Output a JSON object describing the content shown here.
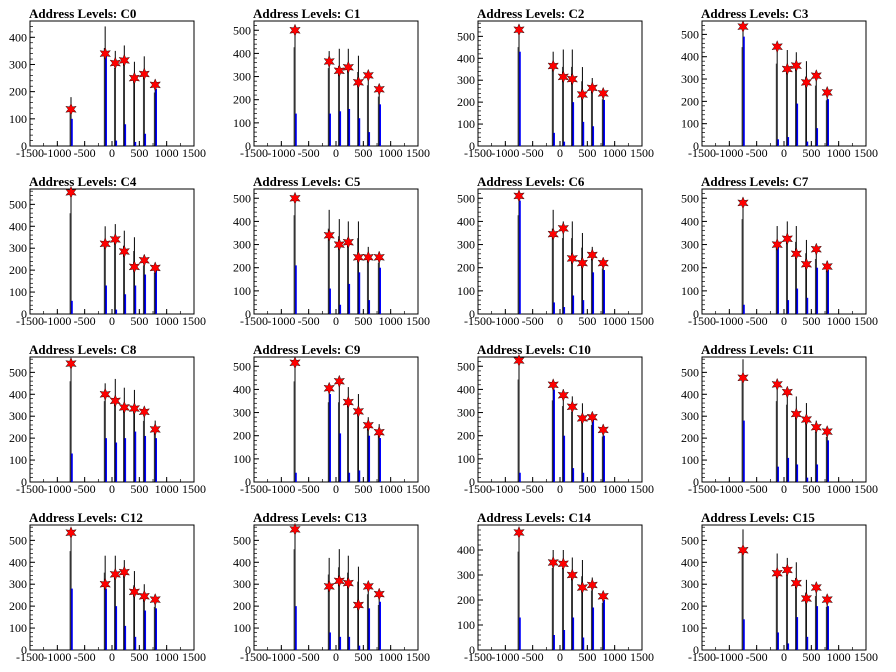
{
  "chart_data": [
    {
      "type": "bar",
      "title": "Address Levels: C0",
      "xlim": [
        -1500,
        1500
      ],
      "ylim": [
        0,
        460
      ],
      "xticks": [
        -1500,
        -1000,
        -500,
        0,
        500,
        1000,
        1500
      ],
      "yticks": [
        0,
        100,
        200,
        300,
        400
      ],
      "peaks": [
        {
          "x": -750,
          "black": 180,
          "blue": 100,
          "star": 135
        },
        {
          "x": -125,
          "black": 440,
          "blue": 330,
          "star": 340
        },
        {
          "x": 60,
          "black": 350,
          "blue": 20,
          "star": 305
        },
        {
          "x": 225,
          "black": 370,
          "blue": 80,
          "star": 315
        },
        {
          "x": 410,
          "black": 310,
          "blue": 15,
          "star": 250
        },
        {
          "x": 590,
          "black": 330,
          "blue": 45,
          "star": 265
        },
        {
          "x": 790,
          "black": 240,
          "blue": 210,
          "star": 225
        }
      ]
    },
    {
      "type": "bar",
      "title": "Address Levels: C1",
      "xlim": [
        -1500,
        1500
      ],
      "ylim": [
        0,
        540
      ],
      "xticks": [
        -1500,
        -1000,
        -500,
        0,
        500,
        1000,
        1500
      ],
      "yticks": [
        0,
        100,
        200,
        300,
        400,
        500
      ],
      "peaks": [
        {
          "x": -750,
          "black": 520,
          "blue": 140,
          "star": 500
        },
        {
          "x": -125,
          "black": 410,
          "blue": 140,
          "star": 365
        },
        {
          "x": 60,
          "black": 420,
          "blue": 150,
          "star": 325
        },
        {
          "x": 225,
          "black": 420,
          "blue": 160,
          "star": 340
        },
        {
          "x": 410,
          "black": 390,
          "blue": 120,
          "star": 275
        },
        {
          "x": 590,
          "black": 320,
          "blue": 60,
          "star": 305
        },
        {
          "x": 790,
          "black": 260,
          "blue": 180,
          "star": 245
        }
      ]
    },
    {
      "type": "bar",
      "title": "Address Levels: C2",
      "xlim": [
        -1500,
        1500
      ],
      "ylim": [
        0,
        570
      ],
      "xticks": [
        -1500,
        -1000,
        -500,
        0,
        500,
        1000,
        1500
      ],
      "yticks": [
        0,
        100,
        200,
        300,
        400,
        500
      ],
      "peaks": [
        {
          "x": -750,
          "black": 550,
          "blue": 430,
          "star": 530
        },
        {
          "x": -125,
          "black": 430,
          "blue": 60,
          "star": 365
        },
        {
          "x": 60,
          "black": 440,
          "blue": 20,
          "star": 315
        },
        {
          "x": 225,
          "black": 440,
          "blue": 200,
          "star": 305
        },
        {
          "x": 410,
          "black": 360,
          "blue": 110,
          "star": 235
        },
        {
          "x": 590,
          "black": 310,
          "blue": 90,
          "star": 265
        },
        {
          "x": 790,
          "black": 260,
          "blue": 210,
          "star": 240
        }
      ]
    },
    {
      "type": "bar",
      "title": "Address Levels: C3",
      "xlim": [
        -1500,
        1500
      ],
      "ylim": [
        0,
        560
      ],
      "xticks": [
        -1500,
        -1000,
        -500,
        0,
        500,
        1000,
        1500
      ],
      "yticks": [
        0,
        100,
        200,
        300,
        400,
        500
      ],
      "peaks": [
        {
          "x": -750,
          "black": 540,
          "blue": 490,
          "star": 535
        },
        {
          "x": -125,
          "black": 450,
          "blue": 30,
          "star": 445
        },
        {
          "x": 60,
          "black": 430,
          "blue": 40,
          "star": 345
        },
        {
          "x": 225,
          "black": 420,
          "blue": 190,
          "star": 360
        },
        {
          "x": 410,
          "black": 380,
          "blue": 20,
          "star": 285
        },
        {
          "x": 590,
          "black": 330,
          "blue": 80,
          "star": 315
        },
        {
          "x": 790,
          "black": 250,
          "blue": 210,
          "star": 240
        }
      ]
    },
    {
      "type": "bar",
      "title": "Address Levels: C4",
      "xlim": [
        -1500,
        1500
      ],
      "ylim": [
        0,
        570
      ],
      "xticks": [
        -1500,
        -1000,
        -500,
        0,
        500,
        1000,
        1500
      ],
      "yticks": [
        0,
        100,
        200,
        300,
        400,
        500
      ],
      "peaks": [
        {
          "x": -750,
          "black": 560,
          "blue": 60,
          "star": 555
        },
        {
          "x": -125,
          "black": 400,
          "blue": 130,
          "star": 320
        },
        {
          "x": 60,
          "black": 410,
          "blue": 20,
          "star": 340
        },
        {
          "x": 225,
          "black": 380,
          "blue": 90,
          "star": 285
        },
        {
          "x": 410,
          "black": 350,
          "blue": 130,
          "star": 215
        },
        {
          "x": 590,
          "black": 270,
          "blue": 180,
          "star": 245
        },
        {
          "x": 790,
          "black": 230,
          "blue": 200,
          "star": 210
        }
      ]
    },
    {
      "type": "bar",
      "title": "Address Levels: C5",
      "xlim": [
        -1500,
        1500
      ],
      "ylim": [
        0,
        540
      ],
      "xticks": [
        -1500,
        -1000,
        -500,
        0,
        500,
        1000,
        1500
      ],
      "yticks": [
        0,
        100,
        200,
        300,
        400,
        500
      ],
      "peaks": [
        {
          "x": -750,
          "black": 520,
          "blue": 210,
          "star": 500
        },
        {
          "x": -125,
          "black": 450,
          "blue": 110,
          "star": 340
        },
        {
          "x": 60,
          "black": 410,
          "blue": 40,
          "star": 300
        },
        {
          "x": 225,
          "black": 400,
          "blue": 130,
          "star": 310
        },
        {
          "x": 410,
          "black": 400,
          "blue": 180,
          "star": 245
        },
        {
          "x": 590,
          "black": 290,
          "blue": 60,
          "star": 245
        },
        {
          "x": 790,
          "black": 270,
          "blue": 200,
          "star": 245
        }
      ]
    },
    {
      "type": "bar",
      "title": "Address Levels: C6",
      "xlim": [
        -1500,
        1500
      ],
      "ylim": [
        0,
        540
      ],
      "xticks": [
        -1500,
        -1000,
        -500,
        0,
        500,
        1000,
        1500
      ],
      "yticks": [
        0,
        100,
        200,
        300,
        400,
        500
      ],
      "peaks": [
        {
          "x": -750,
          "black": 520,
          "blue": 490,
          "star": 510
        },
        {
          "x": -125,
          "black": 450,
          "blue": 50,
          "star": 345
        },
        {
          "x": 60,
          "black": 400,
          "blue": 30,
          "star": 370
        },
        {
          "x": 225,
          "black": 400,
          "blue": 80,
          "star": 240
        },
        {
          "x": 410,
          "black": 350,
          "blue": 60,
          "star": 220
        },
        {
          "x": 590,
          "black": 290,
          "blue": 180,
          "star": 255
        },
        {
          "x": 790,
          "black": 240,
          "blue": 190,
          "star": 220
        }
      ]
    },
    {
      "type": "bar",
      "title": "Address Levels: C7",
      "xlim": [
        -1500,
        1500
      ],
      "ylim": [
        0,
        540
      ],
      "xticks": [
        -1500,
        -1000,
        -500,
        0,
        500,
        1000,
        1500
      ],
      "yticks": [
        0,
        100,
        200,
        300,
        400,
        500
      ],
      "peaks": [
        {
          "x": -750,
          "black": 500,
          "blue": 40,
          "star": 480
        },
        {
          "x": -125,
          "black": 380,
          "blue": 300,
          "star": 300
        },
        {
          "x": 60,
          "black": 400,
          "blue": 60,
          "star": 325
        },
        {
          "x": 225,
          "black": 380,
          "blue": 110,
          "star": 260
        },
        {
          "x": 410,
          "black": 320,
          "blue": 70,
          "star": 215
        },
        {
          "x": 590,
          "black": 290,
          "blue": 200,
          "star": 280
        },
        {
          "x": 790,
          "black": 230,
          "blue": 190,
          "star": 205
        }
      ]
    },
    {
      "type": "bar",
      "title": "Address Levels: C8",
      "xlim": [
        -1500,
        1500
      ],
      "ylim": [
        0,
        570
      ],
      "xticks": [
        -1500,
        -1000,
        -500,
        0,
        500,
        1000,
        1500
      ],
      "yticks": [
        0,
        100,
        200,
        300,
        400,
        500
      ],
      "peaks": [
        {
          "x": -750,
          "black": 560,
          "blue": 130,
          "star": 540
        },
        {
          "x": -125,
          "black": 450,
          "blue": 200,
          "star": 400
        },
        {
          "x": 60,
          "black": 470,
          "blue": 180,
          "star": 370
        },
        {
          "x": 225,
          "black": 430,
          "blue": 200,
          "star": 340
        },
        {
          "x": 410,
          "black": 420,
          "blue": 230,
          "star": 335
        },
        {
          "x": 590,
          "black": 340,
          "blue": 210,
          "star": 320
        },
        {
          "x": 790,
          "black": 280,
          "blue": 200,
          "star": 240
        }
      ]
    },
    {
      "type": "bar",
      "title": "Address Levels: C9",
      "xlim": [
        -1500,
        1500
      ],
      "ylim": [
        0,
        540
      ],
      "xticks": [
        -1500,
        -1000,
        -500,
        0,
        500,
        1000,
        1500
      ],
      "yticks": [
        0,
        100,
        200,
        300,
        400,
        500
      ],
      "peaks": [
        {
          "x": -750,
          "black": 530,
          "blue": 40,
          "star": 515
        },
        {
          "x": -125,
          "black": 420,
          "blue": 380,
          "star": 405
        },
        {
          "x": 60,
          "black": 420,
          "blue": 210,
          "star": 435
        },
        {
          "x": 225,
          "black": 410,
          "blue": 40,
          "star": 345
        },
        {
          "x": 410,
          "black": 380,
          "blue": 50,
          "star": 305
        },
        {
          "x": 590,
          "black": 280,
          "blue": 200,
          "star": 245
        },
        {
          "x": 790,
          "black": 250,
          "blue": 190,
          "star": 215
        }
      ]
    },
    {
      "type": "bar",
      "title": "Address Levels: C10",
      "xlim": [
        -1500,
        1500
      ],
      "ylim": [
        0,
        540
      ],
      "xticks": [
        -1500,
        -1000,
        -500,
        0,
        500,
        1000,
        1500
      ],
      "yticks": [
        0,
        100,
        200,
        300,
        400,
        500
      ],
      "peaks": [
        {
          "x": -750,
          "black": 540,
          "blue": 40,
          "star": 525
        },
        {
          "x": -125,
          "black": 430,
          "blue": 400,
          "star": 420
        },
        {
          "x": 60,
          "black": 400,
          "blue": 200,
          "star": 375
        },
        {
          "x": 225,
          "black": 370,
          "blue": 60,
          "star": 325
        },
        {
          "x": 410,
          "black": 340,
          "blue": 40,
          "star": 275
        },
        {
          "x": 590,
          "black": 300,
          "blue": 280,
          "star": 280
        },
        {
          "x": 790,
          "black": 240,
          "blue": 200,
          "star": 225
        }
      ]
    },
    {
      "type": "bar",
      "title": "Address Levels: C11",
      "xlim": [
        -1500,
        1500
      ],
      "ylim": [
        0,
        570
      ],
      "xticks": [
        -1500,
        -1000,
        -500,
        0,
        500,
        1000,
        1500
      ],
      "yticks": [
        0,
        100,
        200,
        300,
        400,
        500
      ],
      "peaks": [
        {
          "x": -750,
          "black": 560,
          "blue": 280,
          "star": 475
        },
        {
          "x": -125,
          "black": 450,
          "blue": 70,
          "star": 445
        },
        {
          "x": 60,
          "black": 430,
          "blue": 110,
          "star": 410
        },
        {
          "x": 225,
          "black": 390,
          "blue": 80,
          "star": 310
        },
        {
          "x": 410,
          "black": 360,
          "blue": 20,
          "star": 285
        },
        {
          "x": 590,
          "black": 280,
          "blue": 80,
          "star": 250
        },
        {
          "x": 790,
          "black": 250,
          "blue": 190,
          "star": 230
        }
      ]
    },
    {
      "type": "bar",
      "title": "Address Levels: C12",
      "xlim": [
        -1500,
        1500
      ],
      "ylim": [
        0,
        570
      ],
      "xticks": [
        -1500,
        -1000,
        -500,
        0,
        500,
        1000,
        1500
      ],
      "yticks": [
        0,
        100,
        200,
        300,
        400,
        500
      ],
      "peaks": [
        {
          "x": -750,
          "black": 550,
          "blue": 280,
          "star": 535
        },
        {
          "x": -125,
          "black": 430,
          "blue": 280,
          "star": 300
        },
        {
          "x": 60,
          "black": 430,
          "blue": 200,
          "star": 345
        },
        {
          "x": 225,
          "black": 410,
          "blue": 110,
          "star": 355
        },
        {
          "x": 410,
          "black": 360,
          "blue": 60,
          "star": 265
        },
        {
          "x": 590,
          "black": 300,
          "blue": 180,
          "star": 245
        },
        {
          "x": 790,
          "black": 240,
          "blue": 190,
          "star": 230
        }
      ]
    },
    {
      "type": "bar",
      "title": "Address Levels: C13",
      "xlim": [
        -1500,
        1500
      ],
      "ylim": [
        0,
        570
      ],
      "xticks": [
        -1500,
        -1000,
        -500,
        0,
        500,
        1000,
        1500
      ],
      "yticks": [
        0,
        100,
        200,
        300,
        400,
        500
      ],
      "peaks": [
        {
          "x": -750,
          "black": 560,
          "blue": 200,
          "star": 550
        },
        {
          "x": -125,
          "black": 420,
          "blue": 80,
          "star": 290
        },
        {
          "x": 60,
          "black": 460,
          "blue": 60,
          "star": 315
        },
        {
          "x": 225,
          "black": 430,
          "blue": 60,
          "star": 305
        },
        {
          "x": 410,
          "black": 380,
          "blue": 20,
          "star": 205
        },
        {
          "x": 590,
          "black": 310,
          "blue": 190,
          "star": 290
        },
        {
          "x": 790,
          "black": 250,
          "blue": 220,
          "star": 255
        }
      ]
    },
    {
      "type": "bar",
      "title": "Address Levels: C14",
      "xlim": [
        -1500,
        1500
      ],
      "ylim": [
        0,
        500
      ],
      "xticks": [
        -1500,
        -1000,
        -500,
        0,
        500,
        1000,
        1500
      ],
      "yticks": [
        0,
        100,
        200,
        300,
        400
      ],
      "peaks": [
        {
          "x": -750,
          "black": 480,
          "blue": 130,
          "star": 470
        },
        {
          "x": -125,
          "black": 400,
          "blue": 60,
          "star": 350
        },
        {
          "x": 60,
          "black": 400,
          "blue": 80,
          "star": 345
        },
        {
          "x": 225,
          "black": 370,
          "blue": 130,
          "star": 300
        },
        {
          "x": 410,
          "black": 360,
          "blue": 50,
          "star": 250
        },
        {
          "x": 590,
          "black": 290,
          "blue": 170,
          "star": 260
        },
        {
          "x": 790,
          "black": 230,
          "blue": 200,
          "star": 215
        }
      ]
    },
    {
      "type": "bar",
      "title": "Address Levels: C15",
      "xlim": [
        -1500,
        1500
      ],
      "ylim": [
        0,
        570
      ],
      "xticks": [
        -1500,
        -1000,
        -500,
        0,
        500,
        1000,
        1500
      ],
      "yticks": [
        0,
        100,
        200,
        300,
        400,
        500
      ],
      "peaks": [
        {
          "x": -750,
          "black": 550,
          "blue": 140,
          "star": 455
        },
        {
          "x": -125,
          "black": 440,
          "blue": 80,
          "star": 350
        },
        {
          "x": 60,
          "black": 420,
          "blue": 30,
          "star": 365
        },
        {
          "x": 225,
          "black": 400,
          "blue": 150,
          "star": 305
        },
        {
          "x": 410,
          "black": 320,
          "blue": 60,
          "star": 235
        },
        {
          "x": 590,
          "black": 300,
          "blue": 200,
          "star": 285
        },
        {
          "x": 790,
          "black": 240,
          "blue": 200,
          "star": 230
        }
      ]
    }
  ],
  "colors": {
    "black_hist": "#000000",
    "blue_hist": "#0000ff",
    "marker": "#ff0000"
  }
}
